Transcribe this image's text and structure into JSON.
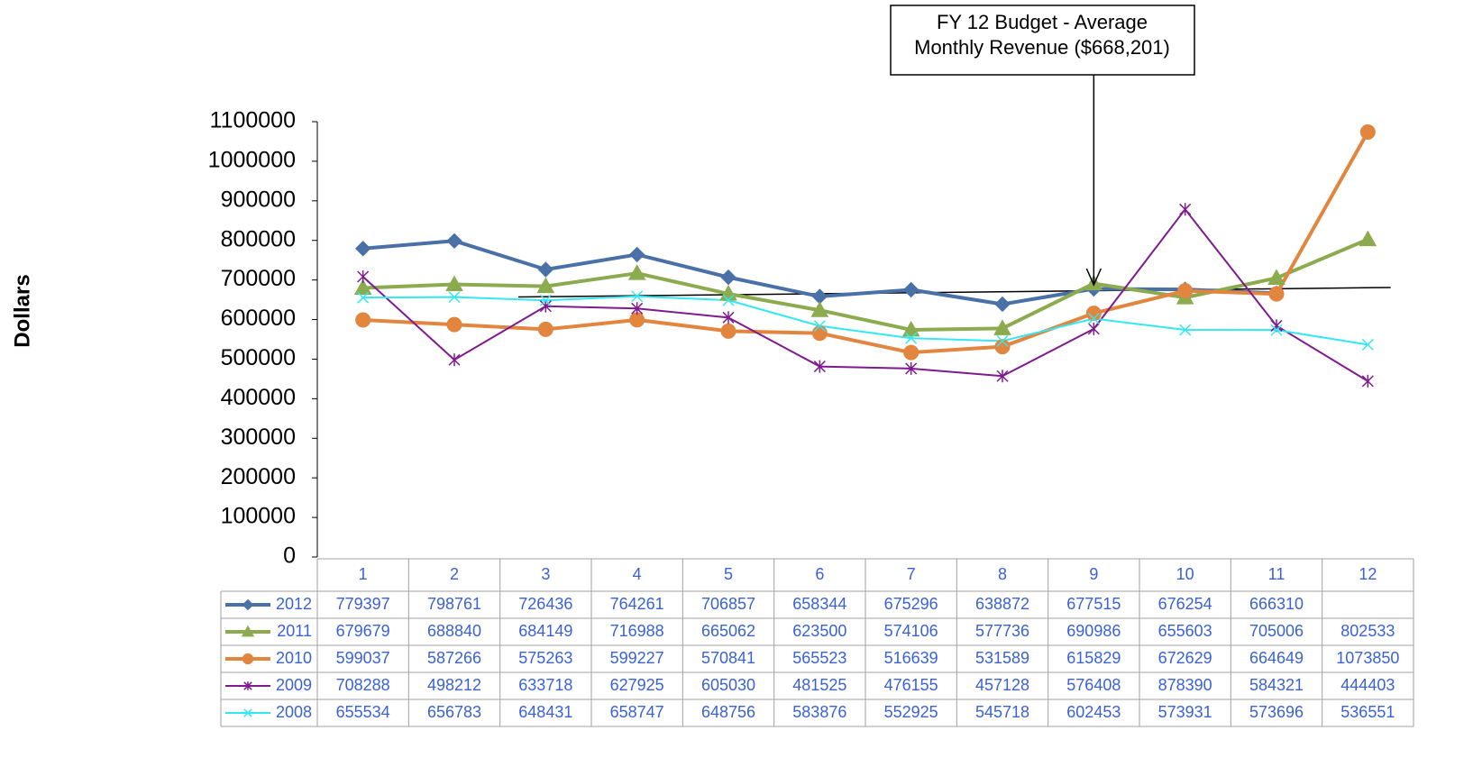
{
  "chart_data": {
    "type": "line",
    "y_label": "Dollars",
    "categories": [
      "1",
      "2",
      "3",
      "4",
      "5",
      "6",
      "7",
      "8",
      "9",
      "10",
      "11",
      "12"
    ],
    "series": [
      {
        "name": "2012",
        "color": "#4a70a8",
        "marker": "diamond",
        "width": 4,
        "values": [
          779397,
          798761,
          726436,
          764261,
          706857,
          658344,
          675296,
          638872,
          677515,
          676254,
          666310,
          null
        ]
      },
      {
        "name": "2011",
        "color": "#8caa4e",
        "marker": "triangle",
        "width": 4,
        "values": [
          679679,
          688840,
          684149,
          716988,
          665062,
          623500,
          574106,
          577736,
          690986,
          655603,
          705006,
          802533
        ]
      },
      {
        "name": "2010",
        "color": "#e2853f",
        "marker": "circle",
        "width": 4,
        "values": [
          599037,
          587266,
          575263,
          599227,
          570841,
          565523,
          516639,
          531589,
          615829,
          672629,
          664649,
          1073850
        ]
      },
      {
        "name": "2009",
        "color": "#7e1b8e",
        "marker": "star",
        "width": 2,
        "values": [
          708288,
          498212,
          633718,
          627925,
          605030,
          481525,
          476155,
          457128,
          576408,
          878390,
          584321,
          444403
        ]
      },
      {
        "name": "2008",
        "color": "#33e8f2",
        "marker": "x",
        "width": 2,
        "values": [
          655534,
          656783,
          648431,
          658747,
          648756,
          583876,
          552925,
          545718,
          602453,
          573931,
          573696,
          536551
        ]
      }
    ],
    "ylim": [
      0,
      1100000
    ],
    "yticks": [
      0,
      100000,
      200000,
      300000,
      400000,
      500000,
      600000,
      700000,
      800000,
      900000,
      1000000,
      1100000
    ],
    "reference_line": {
      "x": [
        2.7,
        12.25
      ],
      "y": [
        657000,
        681000
      ],
      "color": "#000000"
    },
    "annotation": {
      "lines": [
        "FY 12 Budget - Average",
        "Monthly Revenue ($668,201)"
      ],
      "arrow_x": 9
    }
  }
}
